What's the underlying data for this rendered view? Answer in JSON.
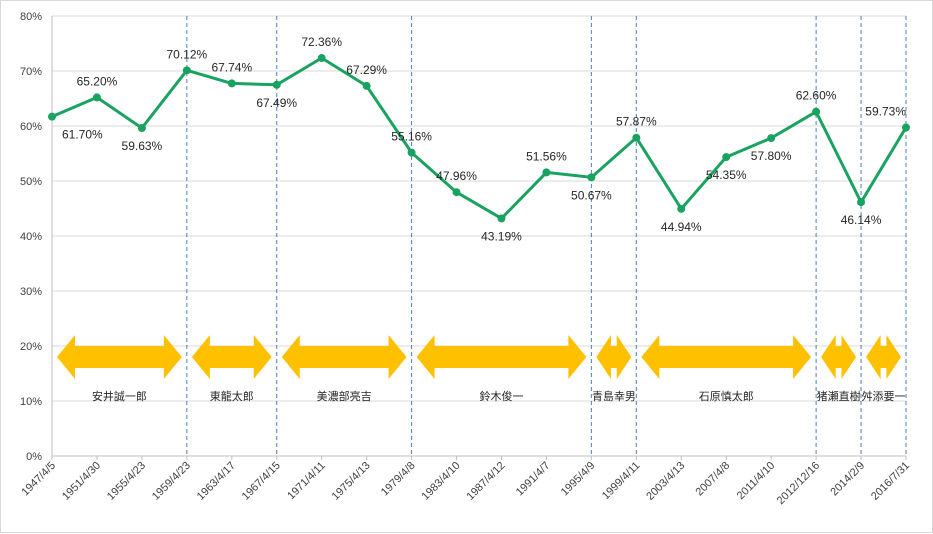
{
  "chart_data": {
    "type": "line",
    "title": "",
    "xlabel": "",
    "ylabel": "",
    "ylim": [
      0,
      80
    ],
    "yticks": [
      "0%",
      "10%",
      "20%",
      "30%",
      "40%",
      "50%",
      "60%",
      "70%",
      "80%"
    ],
    "categories": [
      "1947/4/5",
      "1951/4/30",
      "1955/4/23",
      "1959/4/23",
      "1963/4/17",
      "1967/4/15",
      "1971/4/11",
      "1975/4/13",
      "1979/4/8",
      "1983/4/10",
      "1987/4/12",
      "1991/4/7",
      "1995/4/9",
      "1999/4/11",
      "2003/4/13",
      "2007/4/8",
      "2011/4/10",
      "2012/12/16",
      "2014/2/9",
      "2016/7/31"
    ],
    "series": [
      {
        "values": [
          61.7,
          65.2,
          59.63,
          70.12,
          67.74,
          67.49,
          72.36,
          67.29,
          55.16,
          47.96,
          43.19,
          51.56,
          50.67,
          57.87,
          44.94,
          54.35,
          57.8,
          62.6,
          46.14,
          59.73
        ],
        "labels": [
          "61.70%",
          "65.20%",
          "59.63%",
          "70.12%",
          "67.74%",
          "67.49%",
          "72.36%",
          "67.29%",
          "55.16%",
          "47.96%",
          "43.19%",
          "51.56%",
          "50.67%",
          "57.87%",
          "44.94%",
          "54.35%",
          "57.80%",
          "62.60%",
          "46.14%",
          "59.73%"
        ],
        "color": "#1aa260"
      }
    ],
    "grid": true,
    "legend": "none",
    "line_color": "#1aa260",
    "arrow_color": "#ffc000",
    "divider_color": "#4a7fc1",
    "dividers_after_category": [
      3,
      5,
      8,
      12,
      13,
      17,
      18,
      19
    ],
    "mayors": [
      {
        "name": "安井誠一郎",
        "start": 0,
        "end": 3
      },
      {
        "name": "東龍太郎",
        "start": 3,
        "end": 5
      },
      {
        "name": "美濃部亮吉",
        "start": 5,
        "end": 8
      },
      {
        "name": "鈴木俊一",
        "start": 8,
        "end": 12
      },
      {
        "name": "青島幸男",
        "start": 12,
        "end": 13
      },
      {
        "name": "石原慎太郎",
        "start": 13,
        "end": 17
      },
      {
        "name": "猪瀬直樹",
        "start": 17,
        "end": 18
      },
      {
        "name": "舛添要一",
        "start": 18,
        "end": 19
      }
    ]
  }
}
